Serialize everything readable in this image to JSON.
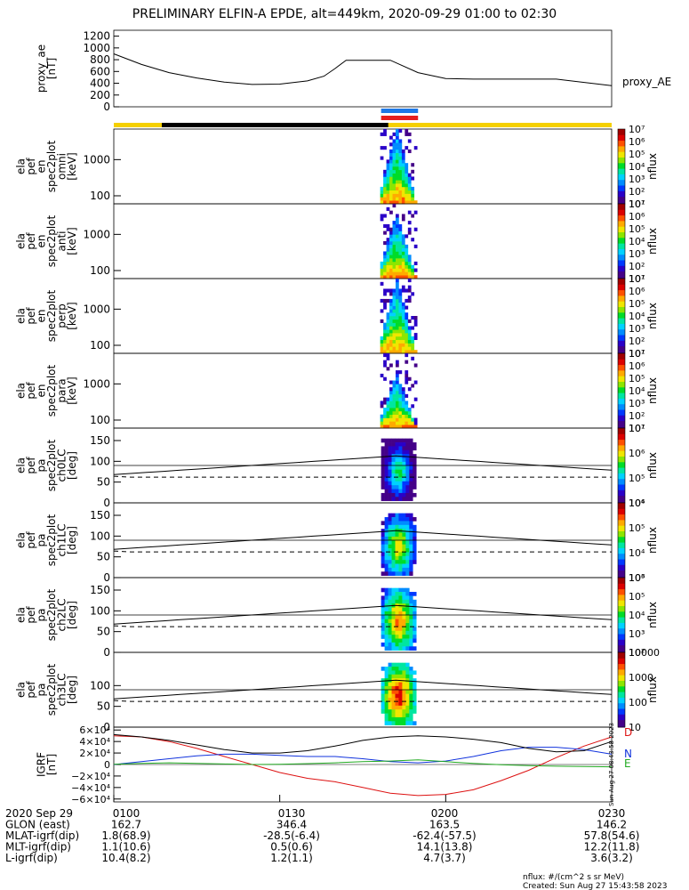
{
  "title": "PRELIMINARY ELFIN-A EPDE, alt=449km, 2020-09-29 01:00 to 02:30",
  "colors": {
    "state_bar": "#f5d000",
    "science_bar": "#000000",
    "bar_blue": "#1e78e6",
    "bar_red": "#e61e1e",
    "Br": "#dd1111",
    "Bt": "#1133dd",
    "Bp": "#22aa22",
    "Bmag": "#000000"
  },
  "chart_data": [
    {
      "type": "line",
      "panel": "proxy_ae",
      "ylabel": [
        "proxy_ae",
        "[nT]"
      ],
      "ylim": [
        0,
        1300
      ],
      "yticks": [
        "0",
        "200",
        "400",
        "600",
        "800",
        "1000",
        "1200"
      ],
      "legend": "proxy_AE",
      "x_minutes": [
        0,
        5,
        10,
        15,
        20,
        25,
        30,
        35,
        38,
        40,
        42,
        45,
        50,
        55,
        60,
        65,
        70,
        80,
        90
      ],
      "values": [
        900,
        720,
        580,
        490,
        420,
        380,
        385,
        440,
        520,
        650,
        790,
        790,
        790,
        580,
        480,
        470,
        470,
        470,
        360
      ]
    },
    {
      "type": "heatmap",
      "panel": "omni",
      "ylabel": [
        "ela",
        "pef",
        "en",
        "spec2plot",
        "omni",
        "[keV]"
      ],
      "yscale": "log",
      "yticks": [
        "100",
        "1000"
      ],
      "colorbar": {
        "label": "nflux",
        "ticks": [
          "10¹",
          "10²",
          "10³",
          "10⁴",
          "10⁵",
          "10⁶",
          "10⁷"
        ]
      }
    },
    {
      "type": "heatmap",
      "panel": "anti",
      "ylabel": [
        "ela",
        "pef",
        "en",
        "spec2plot",
        "anti",
        "[keV]"
      ],
      "yscale": "log",
      "yticks": [
        "100",
        "1000"
      ],
      "colorbar": {
        "label": "nflux",
        "ticks": [
          "10¹",
          "10²",
          "10³",
          "10⁴",
          "10⁵",
          "10⁶",
          "10⁷"
        ]
      }
    },
    {
      "type": "heatmap",
      "panel": "perp",
      "ylabel": [
        "ela",
        "pef",
        "en",
        "spec2plot",
        "perp",
        "[keV]"
      ],
      "yscale": "log",
      "yticks": [
        "100",
        "1000"
      ],
      "colorbar": {
        "label": "nflux",
        "ticks": [
          "10¹",
          "10²",
          "10³",
          "10⁴",
          "10⁵",
          "10⁶",
          "10⁷"
        ]
      }
    },
    {
      "type": "heatmap",
      "panel": "para",
      "ylabel": [
        "ela",
        "pef",
        "en",
        "spec2plot",
        "para",
        "[keV]"
      ],
      "yscale": "log",
      "yticks": [
        "100",
        "1000"
      ],
      "colorbar": {
        "label": "nflux",
        "ticks": [
          "10¹",
          "10²",
          "10³",
          "10⁴",
          "10⁵",
          "10⁶",
          "10⁷"
        ]
      }
    },
    {
      "type": "heatmap",
      "panel": "ch0LC",
      "ylabel": [
        "ela",
        "pef",
        "pa",
        "spec2plot",
        "ch0LC",
        "[deg]"
      ],
      "ylim": [
        0,
        180
      ],
      "yticks": [
        "0",
        "50",
        "100",
        "150"
      ],
      "colorbar": {
        "label": "nflux",
        "ticks": [
          "10⁴",
          "10⁵",
          "10⁶",
          "10⁷"
        ]
      }
    },
    {
      "type": "heatmap",
      "panel": "ch1LC",
      "ylabel": [
        "ela",
        "pef",
        "pa",
        "spec2plot",
        "ch1LC",
        "[deg]"
      ],
      "ylim": [
        0,
        180
      ],
      "yticks": [
        "0",
        "50",
        "100",
        "150"
      ],
      "colorbar": {
        "label": "nflux",
        "ticks": [
          "10³",
          "10⁴",
          "10⁵",
          "10⁶"
        ]
      }
    },
    {
      "type": "heatmap",
      "panel": "ch2LC",
      "ylabel": [
        "ela",
        "pef",
        "pa",
        "spec2plot",
        "ch2LC",
        "[deg]"
      ],
      "ylim": [
        0,
        180
      ],
      "yticks": [
        "0",
        "50",
        "100",
        "150"
      ],
      "colorbar": {
        "label": "nflux",
        "ticks": [
          "10²",
          "10³",
          "10⁴",
          "10⁵",
          "10⁶"
        ]
      }
    },
    {
      "type": "heatmap",
      "panel": "ch3LC",
      "ylabel": [
        "ela",
        "pef",
        "pa",
        "spec2plot",
        "ch3LC",
        "[deg]"
      ],
      "ylim": [
        0,
        180
      ],
      "yticks": [
        "0",
        "50",
        "100"
      ],
      "colorbar": {
        "label": "nflux",
        "ticks": [
          "10",
          "100",
          "1000",
          "10000"
        ]
      }
    },
    {
      "type": "line",
      "panel": "IGRF",
      "ylabel": [
        "IGRF",
        "[nT]"
      ],
      "ylim": [
        -65000,
        65000
      ],
      "yticks": [
        "−6×10⁴",
        "−4×10⁴",
        "−2×10⁴",
        "0",
        "2×10⁴",
        "4×10⁴",
        "6×10⁴"
      ],
      "x_minutes": [
        0,
        5,
        10,
        15,
        20,
        25,
        30,
        35,
        40,
        45,
        50,
        55,
        60,
        65,
        70,
        75,
        80,
        85,
        90
      ],
      "series": [
        {
          "name": "D",
          "values": [
            50000,
            48000,
            40000,
            28000,
            14000,
            0,
            -14000,
            -24000,
            -30000,
            -40000,
            -50000,
            -54000,
            -52000,
            -44000,
            -28000,
            -10000,
            12000,
            32000,
            48000
          ]
        },
        {
          "name": "N",
          "values": [
            0,
            5000,
            10000,
            15000,
            18000,
            18000,
            16000,
            14000,
            14000,
            10000,
            5000,
            3000,
            6000,
            14000,
            24000,
            30000,
            30000,
            26000,
            18000
          ]
        },
        {
          "name": "E",
          "values": [
            500,
            2000,
            3000,
            2000,
            1000,
            0,
            500,
            1500,
            3000,
            5000,
            6000,
            8000,
            5000,
            2000,
            -500,
            -2000,
            -3000,
            -3500,
            -4000
          ]
        },
        {
          "name": "",
          "values": [
            52000,
            48000,
            42000,
            34000,
            26000,
            20000,
            20000,
            24000,
            32000,
            42000,
            48000,
            50000,
            48000,
            44000,
            38000,
            28000,
            22000,
            24000,
            40000
          ]
        }
      ]
    }
  ],
  "xaxis": {
    "rows": [
      {
        "label": "2020 Sep 29",
        "values": [
          "0100",
          "0130",
          "0200",
          "0230"
        ]
      },
      {
        "label": "GLON (east)",
        "values": [
          "162.7",
          "346.4",
          "163.5",
          "146.2"
        ]
      },
      {
        "label": "MLAT-igrf(dip)",
        "values": [
          "1.8(68.9)",
          "-28.5(-6.4)",
          "-62.4(-57.5)",
          "57.8(54.6)"
        ]
      },
      {
        "label": "MLT-igrf(dip)",
        "values": [
          "1.1(10.6)",
          "0.5(0.6)",
          "14.1(13.8)",
          "12.2(11.8)"
        ]
      },
      {
        "label": "L-igrf(dip)",
        "values": [
          "10.4(8.2)",
          "1.2(1.1)",
          "4.7(3.7)",
          "3.6(3.2)"
        ]
      }
    ]
  },
  "footer": {
    "units": "nflux: #/(cm^2 s sr MeV)",
    "created": "Created: Sun Aug 27 15:43:58 2023"
  },
  "side_stamp": "Sun Aug 27 08:43:58 2023"
}
